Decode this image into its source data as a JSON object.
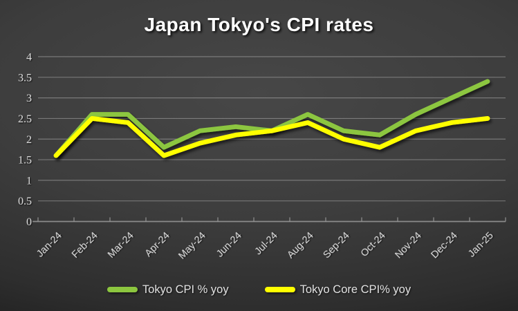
{
  "chart_data": {
    "type": "line",
    "title": "Japan Tokyo's CPI rates",
    "categories": [
      "Jan-24",
      "Feb-24",
      "Mar-24",
      "Apr-24",
      "May-24",
      "Jun-24",
      "Jul-24",
      "Aug-24",
      "Sep-24",
      "Oct-24",
      "Nov-24",
      "Dec-24",
      "Jan-25"
    ],
    "series": [
      {
        "name": "Tokyo CPI % yoy",
        "color": "#8CC63F",
        "values": [
          1.6,
          2.6,
          2.6,
          1.8,
          2.2,
          2.3,
          2.2,
          2.6,
          2.2,
          2.1,
          2.6,
          3.0,
          3.4
        ]
      },
      {
        "name": "Tokyo Core CPI% yoy",
        "color": "#FFFF00",
        "values": [
          1.6,
          2.5,
          2.4,
          1.6,
          1.9,
          2.1,
          2.2,
          2.4,
          2.0,
          1.8,
          2.2,
          2.4,
          2.5
        ]
      }
    ],
    "ylim": [
      0,
      4
    ],
    "ytick_step": 0.5,
    "yticks": [
      "0",
      "0.5",
      "1",
      "1.5",
      "2",
      "2.5",
      "3",
      "3.5",
      "4"
    ],
    "xlabel": "",
    "ylabel": "",
    "grid": true,
    "legend_position": "bottom"
  },
  "colors": {
    "background_center": "#474747",
    "background_edge": "#0e0e0e",
    "gridline": "rgba(255,255,255,0.30)",
    "axis_line": "#9a9a9a",
    "tick_label": "#d9d9d9",
    "title_text": "#ffffff",
    "legend_text": "#e3e3e3"
  }
}
